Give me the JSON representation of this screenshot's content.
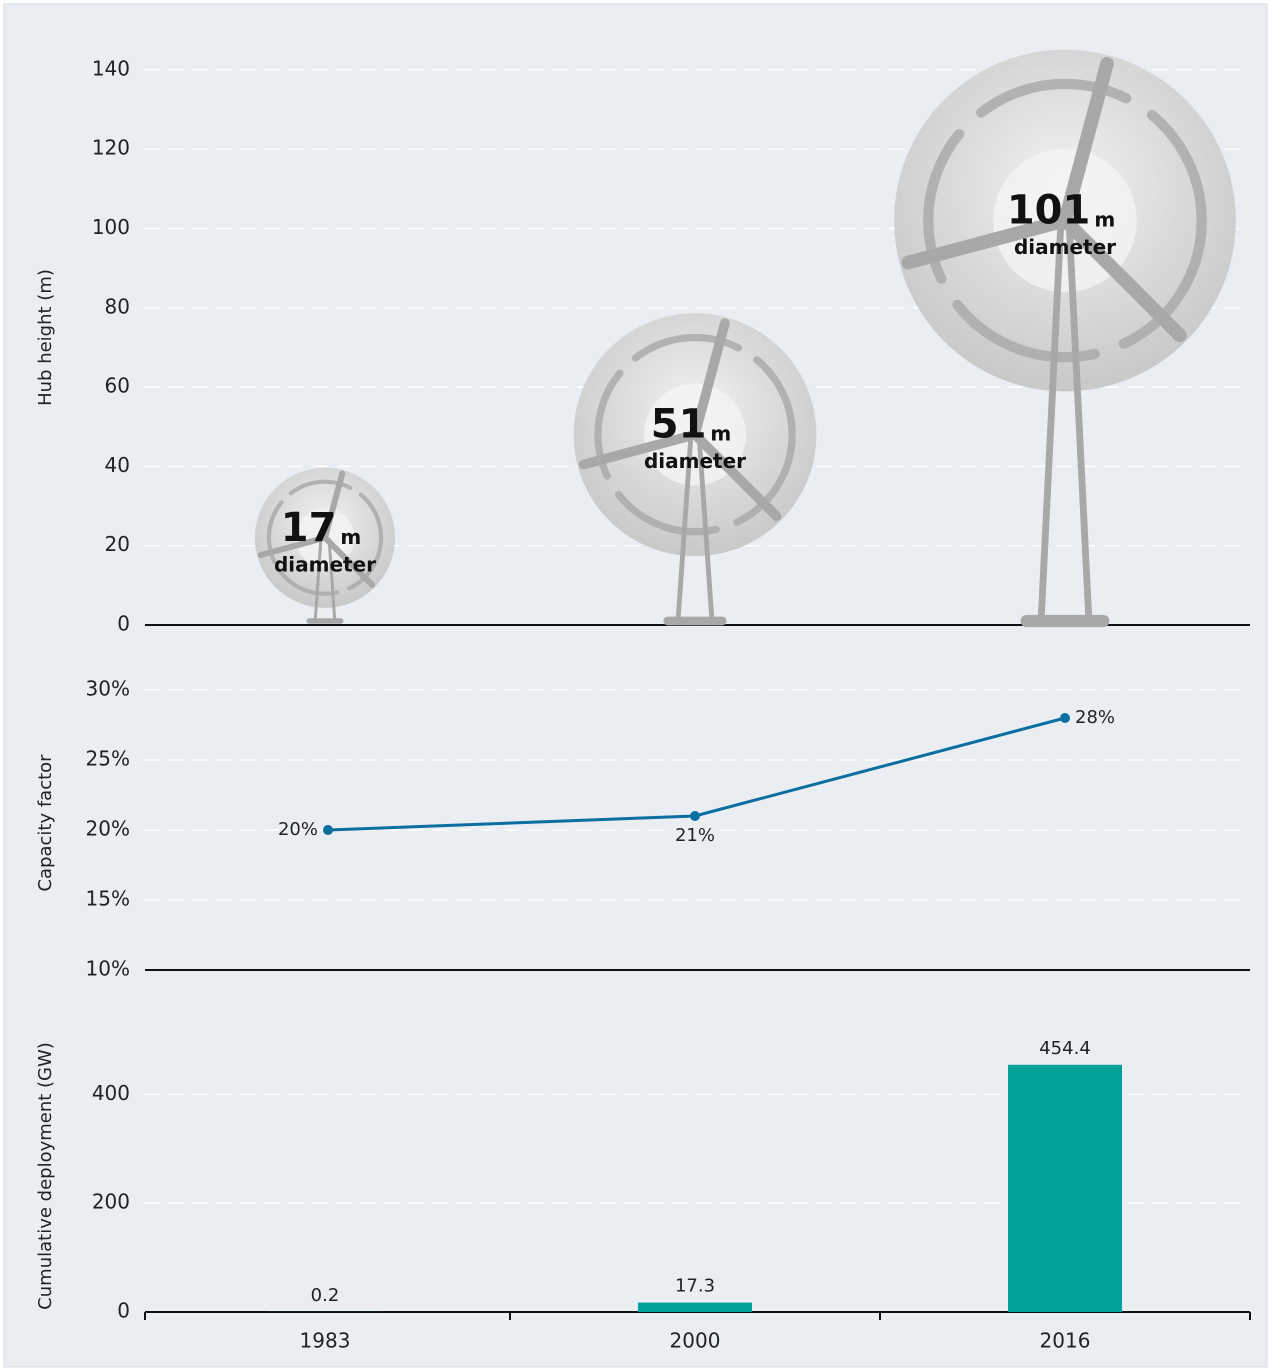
{
  "chart_data": [
    {
      "type": "turbine",
      "y_label": "Hub height (m)",
      "values": [
        22,
        48,
        102
      ],
      "diameters": [
        17,
        51,
        101
      ],
      "diameter_unit": "m",
      "diameter_label": "diameter",
      "ylim": [
        0,
        145
      ],
      "yticks": [
        0,
        20,
        40,
        60,
        80,
        100,
        120,
        140
      ],
      "grid": true
    },
    {
      "type": "line",
      "y_label": "Capacity factor",
      "values": [
        20,
        21,
        28
      ],
      "value_labels": [
        "20%",
        "21%",
        "28%"
      ],
      "color": "#0a6fa0",
      "ylim": [
        10,
        31
      ],
      "yticks": [
        {
          "value": 10,
          "label": "10%"
        },
        {
          "value": 15,
          "label": "15%"
        },
        {
          "value": 20,
          "label": "20%"
        },
        {
          "value": 25,
          "label": "25%"
        },
        {
          "value": 30,
          "label": "30%"
        }
      ],
      "grid": true
    },
    {
      "type": "bar",
      "y_label": "Cumulative deployment (GW)",
      "categories": [
        "1983",
        "2000",
        "2016"
      ],
      "values": [
        0.2,
        17.3,
        454.4
      ],
      "color": "#00a19a",
      "ylim": [
        0,
        500
      ],
      "yticks": [
        0,
        200,
        400
      ],
      "grid": true
    }
  ]
}
